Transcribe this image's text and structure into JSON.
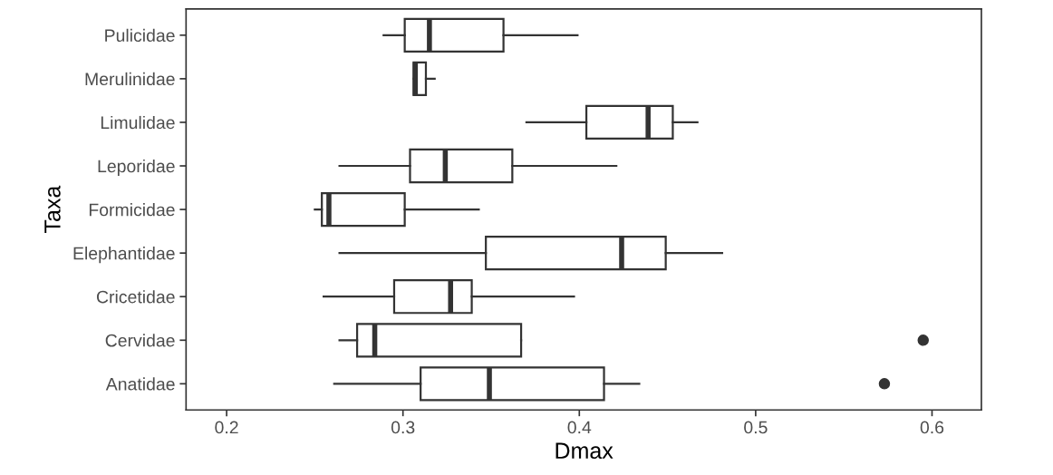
{
  "chart_data": {
    "type": "box",
    "orientation": "horizontal",
    "xlabel": "Dmax",
    "ylabel": "Taxa",
    "categories": [
      "Pulicidae",
      "Merulinidae",
      "Limulidae",
      "Leporidae",
      "Formicidae",
      "Elephantidae",
      "Cricetidae",
      "Cervidae",
      "Anatidae"
    ],
    "boxes": [
      {
        "low": 0.289,
        "q1": 0.301,
        "median": 0.315,
        "q3": 0.357,
        "high": 0.399
      },
      {
        "low": 0.306,
        "q1": 0.306,
        "median": 0.307,
        "q3": 0.313,
        "high": 0.318
      },
      {
        "low": 0.37,
        "q1": 0.404,
        "median": 0.439,
        "q3": 0.453,
        "high": 0.467
      },
      {
        "low": 0.264,
        "q1": 0.304,
        "median": 0.324,
        "q3": 0.362,
        "high": 0.421
      },
      {
        "low": 0.25,
        "q1": 0.254,
        "median": 0.258,
        "q3": 0.301,
        "high": 0.343
      },
      {
        "low": 0.264,
        "q1": 0.347,
        "median": 0.424,
        "q3": 0.449,
        "high": 0.481
      },
      {
        "low": 0.255,
        "q1": 0.295,
        "median": 0.327,
        "q3": 0.339,
        "high": 0.397
      },
      {
        "low": 0.264,
        "q1": 0.274,
        "median": 0.284,
        "q3": 0.367,
        "high": 0.367,
        "outliers": [
          0.595
        ]
      },
      {
        "low": 0.261,
        "q1": 0.31,
        "median": 0.349,
        "q3": 0.414,
        "high": 0.434,
        "outliers": [
          0.573
        ]
      }
    ],
    "color": "#333333",
    "xlim": [
      0.177,
      0.628
    ],
    "xticks": [
      0.2,
      0.3,
      0.4,
      0.5,
      0.6
    ],
    "grid": false,
    "legend": false
  }
}
